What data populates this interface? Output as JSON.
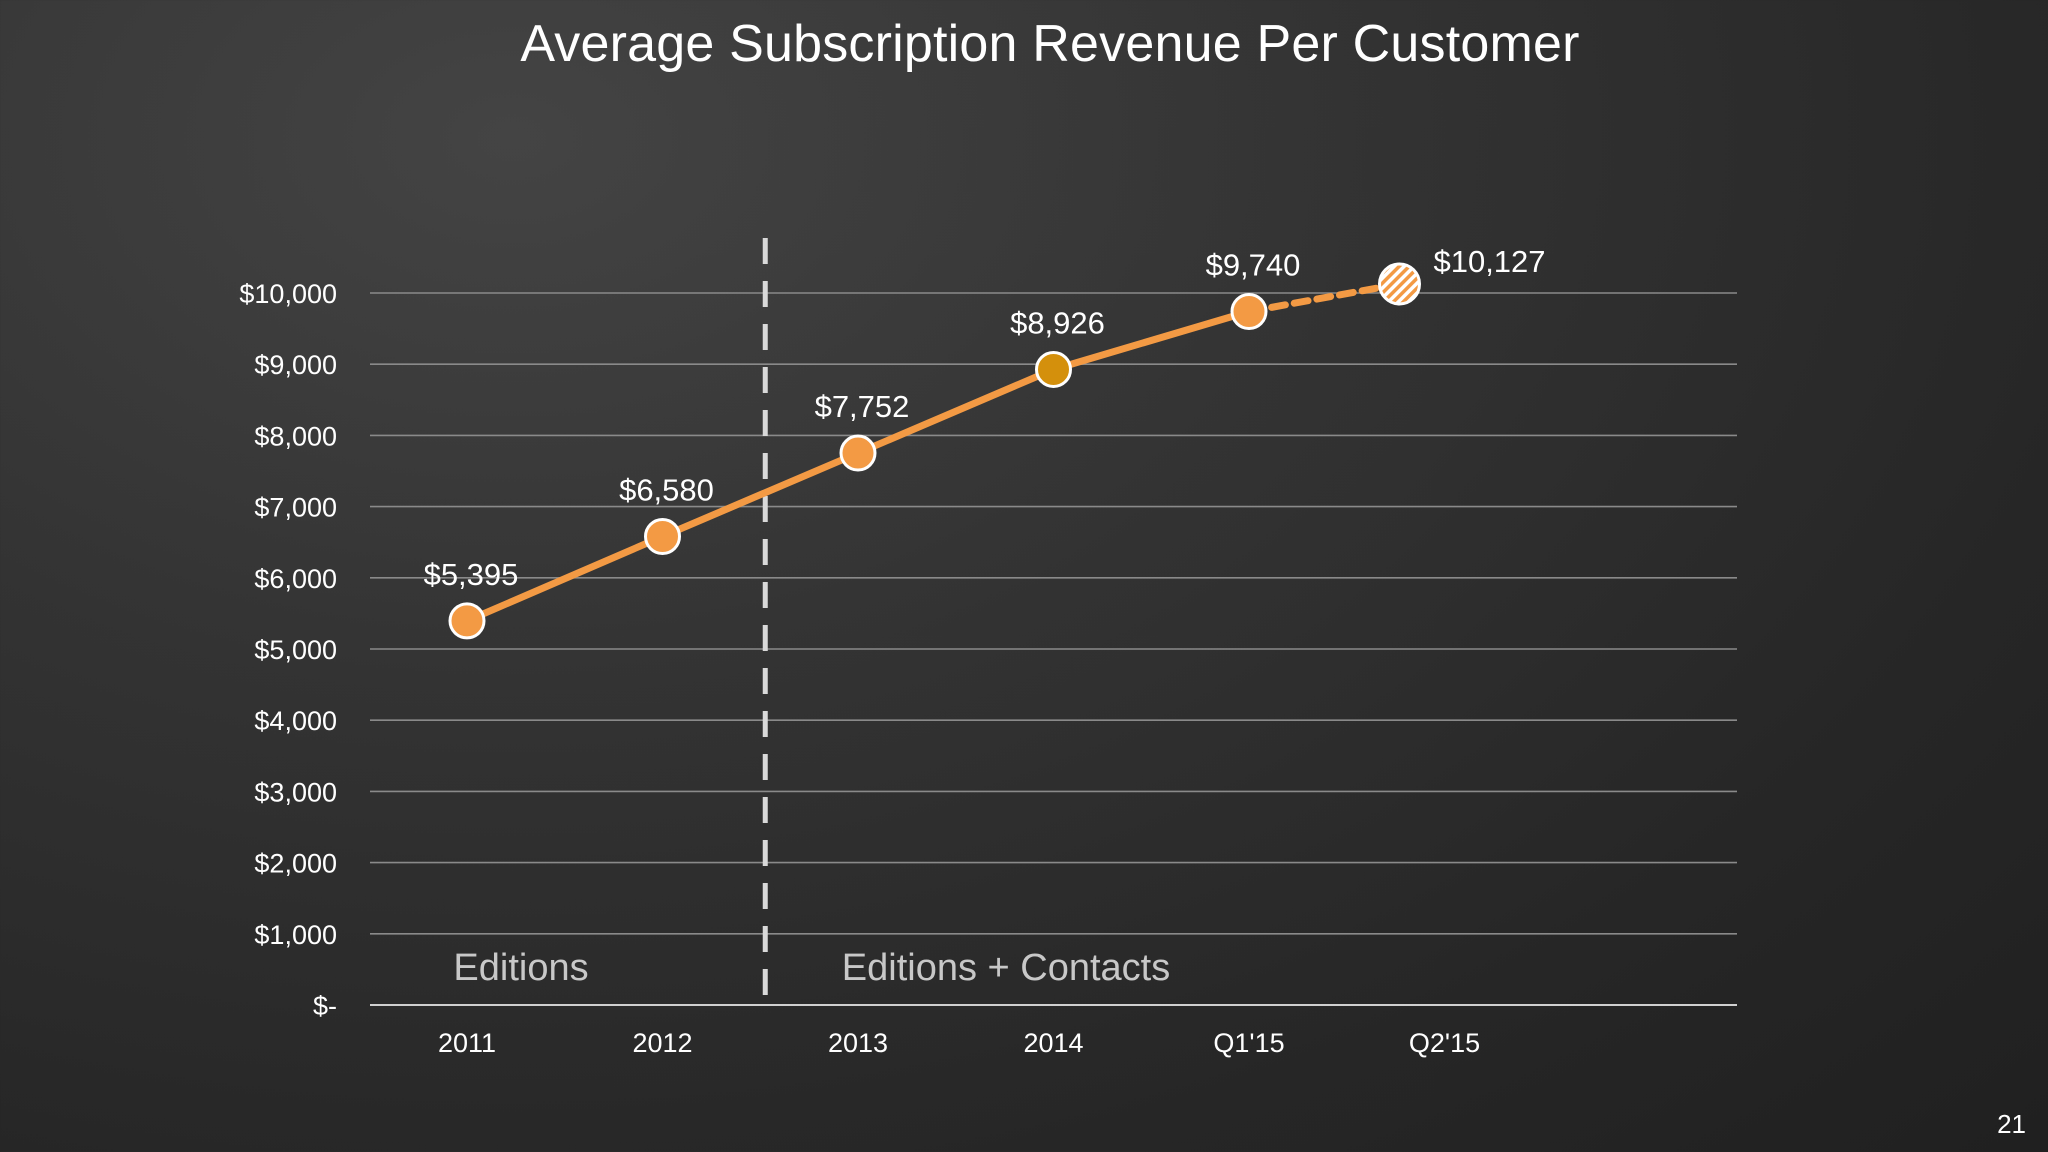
{
  "slide": {
    "title": "Average Subscription Revenue Per Customer",
    "page_number": "21"
  },
  "colors": {
    "background": "#2b2b2b",
    "line": "#f39a44",
    "marker": "#f39a44",
    "marker_highlight": "#d4900c",
    "marker_outline": "#ffffff",
    "gridline": "#8a8a8a",
    "divider": "#d9d9d9",
    "region_label": "#c8c8c8"
  },
  "chart_data": {
    "type": "line",
    "categories": [
      "2011",
      "2012",
      "2013",
      "2014",
      "Q1'15",
      "Q2'15"
    ],
    "series": [
      {
        "values": [
          5395,
          6580,
          7752,
          8926,
          9740,
          10127
        ],
        "data_labels": [
          "$5,395",
          "$6,580",
          "$7,752",
          "$8,926",
          "$9,740",
          "$10,127"
        ]
      }
    ],
    "projected_points": [
      5
    ],
    "highlighted_points": [
      3
    ],
    "ylim": [
      0,
      10000
    ],
    "yticks": [
      0,
      1000,
      2000,
      3000,
      4000,
      5000,
      6000,
      7000,
      8000,
      9000,
      10000
    ],
    "ytick_labels": [
      "$-",
      "$1,000",
      "$2,000",
      "$3,000",
      "$4,000",
      "$5,000",
      "$6,000",
      "$7,000",
      "$8,000",
      "$9,000",
      "$10,000"
    ],
    "grid": true,
    "legend": "none",
    "divider_between": [
      "2012",
      "2013"
    ],
    "regions": [
      {
        "label": "Editions",
        "spans": [
          "2011",
          "2012"
        ]
      },
      {
        "label": "Editions + Contacts",
        "spans": [
          "2013",
          "Q1'15"
        ]
      }
    ]
  }
}
